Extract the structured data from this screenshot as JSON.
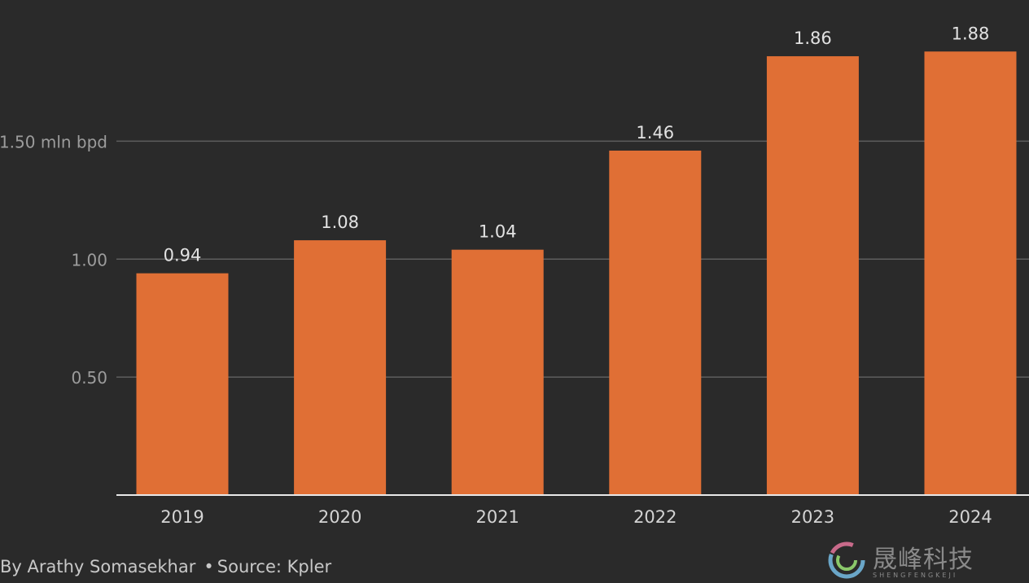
{
  "chart_data": {
    "type": "bar",
    "categories": [
      "2019",
      "2020",
      "2021",
      "2022",
      "2023",
      "2024"
    ],
    "values": [
      0.94,
      1.08,
      1.04,
      1.46,
      1.86,
      1.88
    ],
    "value_labels": [
      "0.94",
      "1.08",
      "1.04",
      "1.46",
      "1.86",
      "1.88"
    ],
    "title": "",
    "xlabel": "",
    "ylabel": "",
    "ylim": [
      0,
      2.0
    ],
    "y_ticks": [
      {
        "value": 0.5,
        "label": "0.50"
      },
      {
        "value": 1.0,
        "label": "1.00"
      },
      {
        "value": 1.5,
        "label": "1.50 mln bpd"
      }
    ],
    "grid": true,
    "legend": "none",
    "bar_color": "#e06f35",
    "background_color": "#2a2a2a"
  },
  "footer": {
    "byline": "By Arathy Somasekhar",
    "separator": "•",
    "source": "Source: Kpler"
  },
  "watermark": {
    "text": "晟峰科技",
    "subtext": "SHENGFENGKEJI"
  }
}
